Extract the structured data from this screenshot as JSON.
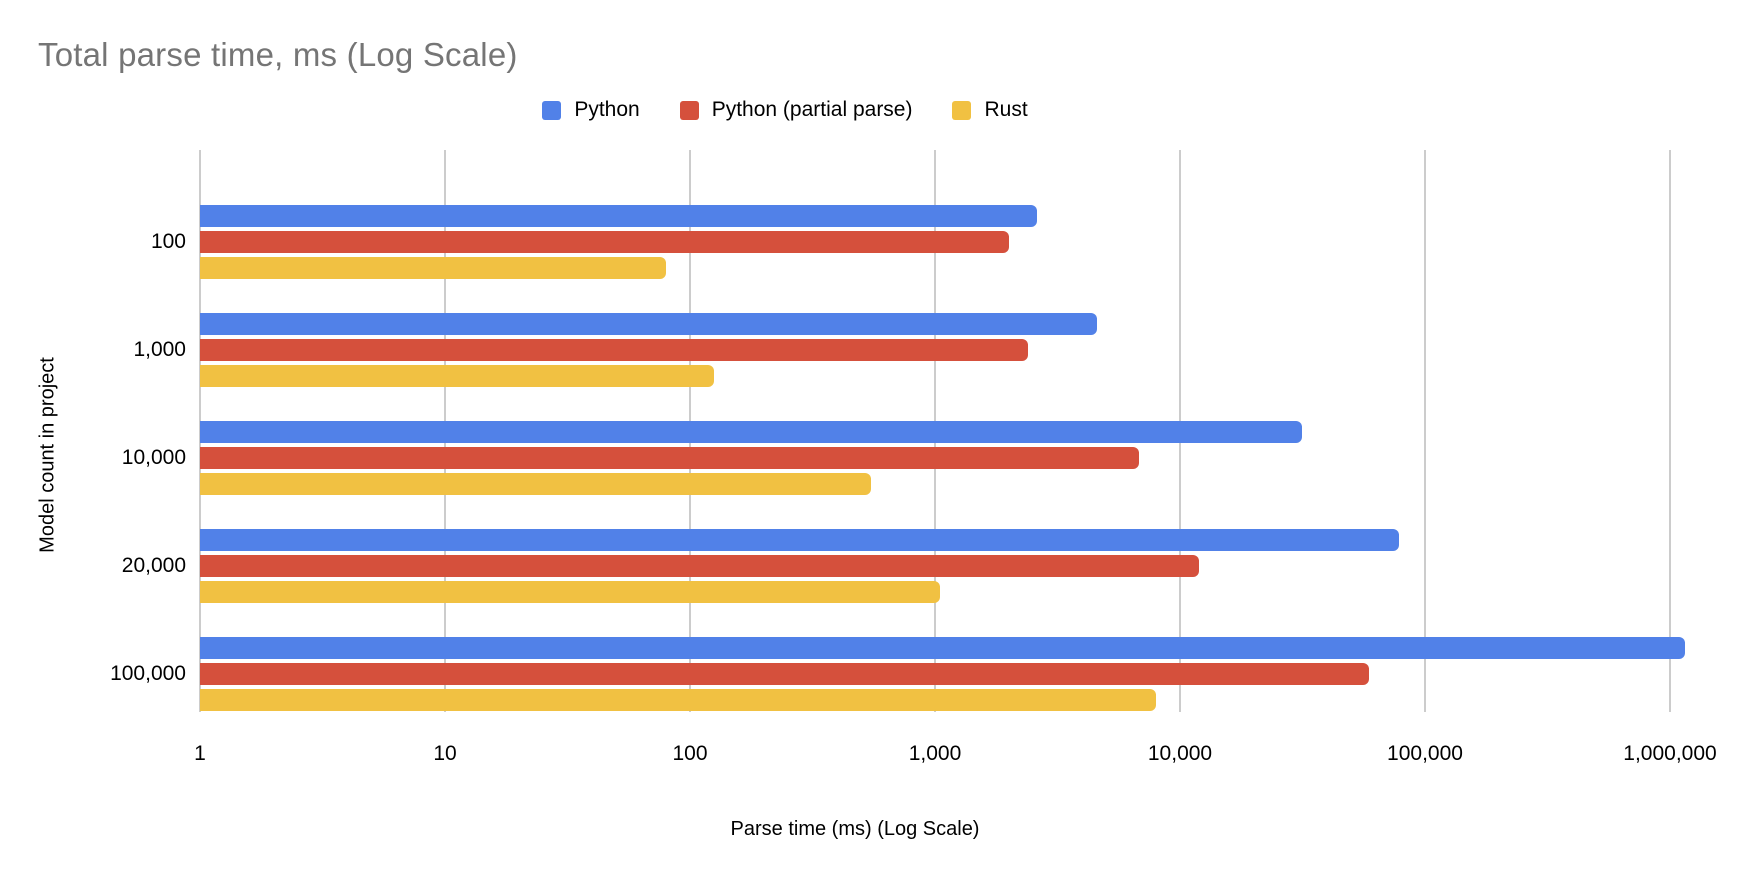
{
  "title": "Total parse time, ms (Log Scale)",
  "colors": {
    "title_text": "#757575",
    "gridline": "#cccccc",
    "axis_text": "#000000",
    "background": "#ffffff"
  },
  "chart_data": {
    "type": "bar",
    "orientation": "horizontal",
    "x_scale": "log",
    "grid": true,
    "legend_position": "top",
    "title": "Total parse time, ms (Log Scale)",
    "xlabel": "Parse time (ms) (Log Scale)",
    "ylabel": "Model count in project",
    "xlim": [
      1,
      1000000
    ],
    "categories": [
      "100",
      "1,000",
      "10,000",
      "20,000",
      "100,000"
    ],
    "series": [
      {
        "name": "Python",
        "color": "#5181e8",
        "values": [
          2600,
          4600,
          31500,
          78000,
          1150000
        ]
      },
      {
        "name": "Python (partial parse)",
        "color": "#d5503c",
        "values": [
          2000,
          2400,
          6800,
          12000,
          59000
        ]
      },
      {
        "name": "Rust",
        "color": "#f1c142",
        "values": [
          80,
          125,
          550,
          1050,
          8000
        ]
      }
    ],
    "x_ticks": [
      {
        "value": 1,
        "label": "1"
      },
      {
        "value": 10,
        "label": "10"
      },
      {
        "value": 100,
        "label": "100"
      },
      {
        "value": 1000,
        "label": "1,000"
      },
      {
        "value": 10000,
        "label": "10,000"
      },
      {
        "value": 100000,
        "label": "100,000"
      },
      {
        "value": 1000000,
        "label": "1,000,000"
      }
    ]
  }
}
